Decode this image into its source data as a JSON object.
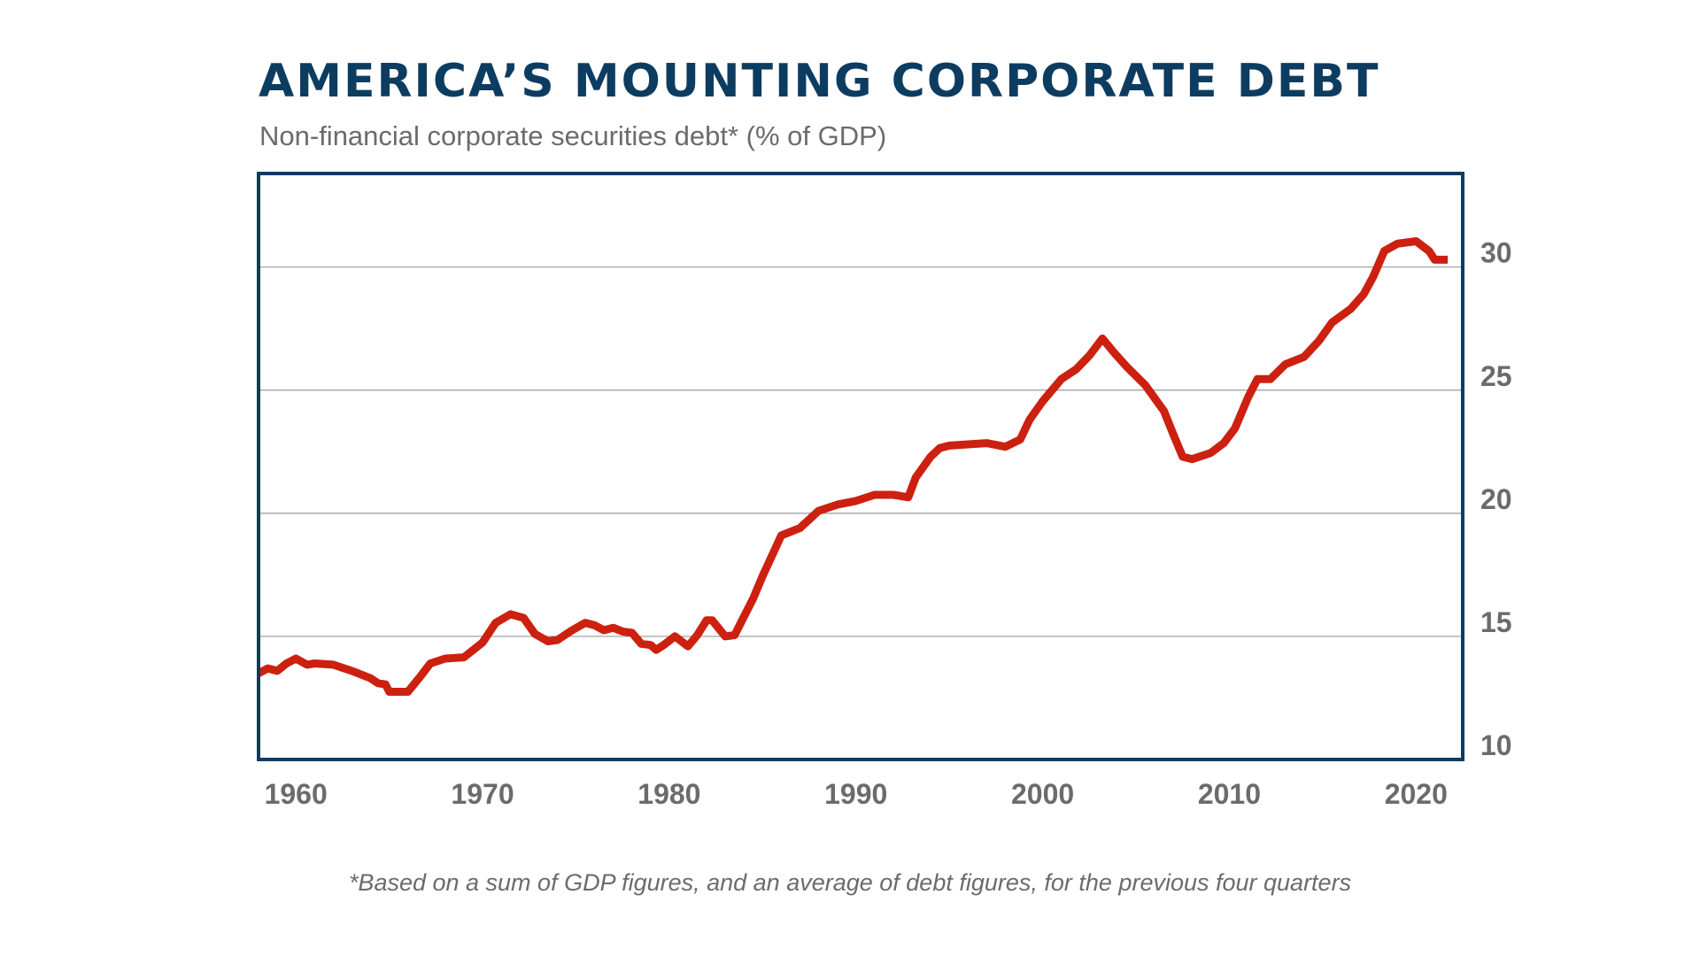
{
  "colors": {
    "title": "#0d3c61",
    "frame": "#0d3c61",
    "line": "#cc2010",
    "grid": "#9a9a9a",
    "text": "#6b6b6b"
  },
  "chart_data": {
    "type": "line",
    "title": "AMERICA’S MOUNTING CORPORATE DEBT",
    "subtitle": "Non-financial corporate securities debt* (% of GDP)",
    "footnote": "*Based on a sum of GDP figures, and an average of debt figures, for the previous four quarters",
    "xlabel": "",
    "ylabel": "",
    "xlim": [
      1958,
      2022.5
    ],
    "ylim": [
      10,
      33.8
    ],
    "x_ticks": [
      "1960",
      "1970",
      "1980",
      "1990",
      "2000",
      "2010",
      "2020"
    ],
    "y_ticks": [
      "10",
      "15",
      "20",
      "25",
      "30"
    ],
    "y_axis_position": "right",
    "grid": "horizontal",
    "series": [
      {
        "x": [
          1958.0,
          1958.5,
          1959.0,
          1959.5,
          1960.0,
          1960.6,
          1961.0,
          1962.0,
          1963.0,
          1964.0,
          1964.4,
          1964.8,
          1965.0,
          1965.4,
          1966.0,
          1966.7,
          1967.2,
          1968.0,
          1969.0,
          1970.0,
          1970.7,
          1971.5,
          1972.2,
          1972.8,
          1973.5,
          1974.0,
          1974.8,
          1975.5,
          1976.0,
          1976.5,
          1977.0,
          1977.5,
          1978.0,
          1978.5,
          1979.0,
          1979.3,
          1979.7,
          1980.3,
          1981.0,
          1981.5,
          1982.0,
          1982.3,
          1983.0,
          1983.5,
          1984.0,
          1984.5,
          1985.0,
          1986.0,
          1987.0,
          1988.0,
          1989.0,
          1990.0,
          1991.0,
          1992.0,
          1992.8,
          1993.2,
          1994.0,
          1994.5,
          1995.0,
          1996.0,
          1997.0,
          1998.0,
          1998.8,
          1999.3,
          2000.0,
          2001.0,
          2001.8,
          2002.5,
          2003.2,
          2003.8,
          2004.5,
          2005.5,
          2006.5,
          2007.0,
          2007.5,
          2008.0,
          2009.0,
          2009.7,
          2010.3,
          2011.0,
          2011.5,
          2012.2,
          2013.0,
          2014.0,
          2014.8,
          2015.5,
          2016.5,
          2017.2,
          2017.7,
          2018.3,
          2019.0,
          2020.0,
          2020.7,
          2021.0,
          2021.7
        ],
        "values": [
          13.5,
          13.7,
          13.6,
          13.9,
          14.1,
          13.85,
          13.9,
          13.85,
          13.6,
          13.3,
          13.1,
          13.05,
          12.75,
          12.75,
          12.75,
          13.4,
          13.9,
          14.1,
          14.15,
          14.75,
          15.55,
          15.9,
          15.75,
          15.1,
          14.8,
          14.85,
          15.25,
          15.55,
          15.45,
          15.25,
          15.35,
          15.2,
          15.15,
          14.7,
          14.65,
          14.45,
          14.65,
          15.0,
          14.6,
          15.05,
          15.65,
          15.65,
          15.0,
          15.05,
          15.8,
          16.55,
          17.45,
          19.1,
          19.4,
          20.1,
          20.35,
          20.5,
          20.75,
          20.75,
          20.65,
          21.45,
          22.3,
          22.65,
          22.75,
          22.8,
          22.85,
          22.7,
          23.0,
          23.8,
          24.55,
          25.45,
          25.85,
          26.4,
          27.1,
          26.55,
          25.95,
          25.2,
          24.15,
          23.2,
          22.3,
          22.2,
          22.45,
          22.85,
          23.45,
          24.7,
          25.45,
          25.45,
          26.05,
          26.35,
          27.0,
          27.75,
          28.3,
          28.9,
          29.6,
          30.65,
          30.95,
          31.05,
          30.65,
          30.3,
          30.3
        ]
      }
    ]
  }
}
